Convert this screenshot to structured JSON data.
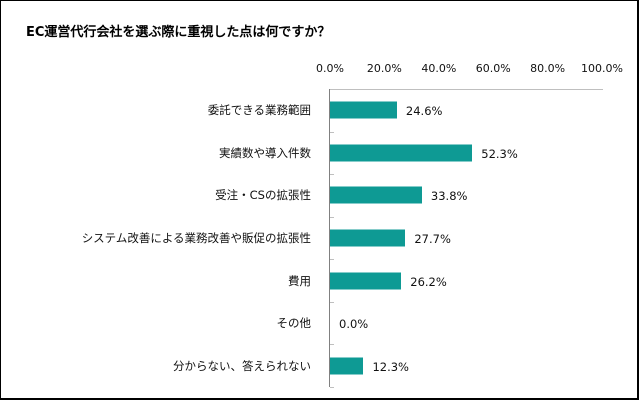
{
  "chart_data": {
    "type": "bar",
    "orientation": "horizontal",
    "title": "EC運営代行会社を選ぶ際に重視した点は何ですか？",
    "xlabel": "",
    "ylabel": "",
    "xlim": [
      0,
      100
    ],
    "x_tick_labels": [
      "0.0%",
      "20.0%",
      "40.0%",
      "60.0%",
      "80.0%",
      "100.0%"
    ],
    "axis_position": "top",
    "grid": false,
    "legend": null,
    "bar_color": "#0e9a94",
    "categories": [
      "委託できる業務範囲",
      "実績数や導入件数",
      "受注・CSの拡張性",
      "システム改善による業務改善や販促の拡張性",
      "費用",
      "その他",
      "分からない、答えられない"
    ],
    "values": [
      24.6,
      52.3,
      33.8,
      27.7,
      26.2,
      0.0,
      12.3
    ],
    "value_labels": [
      "24.6%",
      "52.3%",
      "33.8%",
      "27.7%",
      "26.2%",
      "0.0%",
      "12.3%"
    ]
  }
}
